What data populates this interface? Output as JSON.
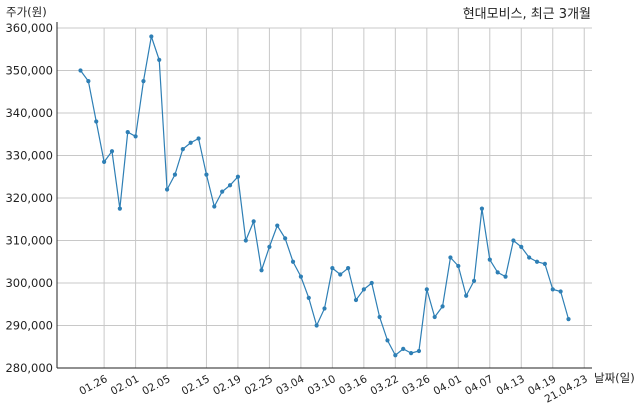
{
  "chart_data": {
    "type": "line",
    "title": "현대모비스, 최근 3개월",
    "ylabel": "주가(원)",
    "xlabel": "날짜(일)",
    "ylim": [
      280000,
      360000
    ],
    "yticks": [
      280000,
      290000,
      300000,
      310000,
      320000,
      330000,
      340000,
      350000,
      360000
    ],
    "ytick_labels": [
      "280,000",
      "290,000",
      "300,000",
      "310,000",
      "320,000",
      "330,000",
      "340,000",
      "350,000",
      "360,000"
    ],
    "xtick_labels": [
      "01.26",
      "02.01",
      "02.05",
      "02.15",
      "02.19",
      "02.25",
      "03.04",
      "03.10",
      "03.16",
      "03.22",
      "03.26",
      "04.01",
      "04.07",
      "04.13",
      "04.19",
      "21.04.23"
    ],
    "xtick_index": [
      3,
      7,
      11,
      16,
      20,
      24,
      28,
      32,
      36,
      40,
      44,
      48,
      52,
      56,
      60,
      64
    ],
    "grid": true,
    "line_color": "#2e7fb5",
    "series": [
      {
        "values": [
          350000,
          347500,
          338000,
          328500,
          331000,
          317500,
          335500,
          334500,
          347500,
          358000,
          352500,
          322000,
          325500,
          331500,
          333000,
          334000,
          325500,
          318000,
          321500,
          323000,
          325000,
          310000,
          314500,
          303000,
          308500,
          313500,
          310500,
          305000,
          301500,
          296500,
          290000,
          294000,
          303500,
          302000,
          303500,
          296000,
          298500,
          300000,
          292000,
          286500,
          283000,
          284500,
          283500,
          284000,
          298500,
          292000,
          294500,
          306000,
          304000,
          297000,
          300500,
          317500,
          305500,
          302500,
          301500,
          310000,
          308500,
          306000,
          305000,
          304500,
          298500,
          298000,
          291500
        ]
      }
    ]
  }
}
